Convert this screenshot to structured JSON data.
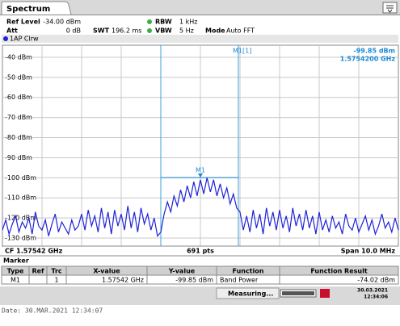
{
  "header": {
    "tab": "Spectrum",
    "settings": [
      {
        "label": "Ref Level",
        "value": "-34.00 dBm"
      },
      {
        "label": "Att",
        "value": "0 dB"
      },
      {
        "label": "SWT",
        "value": "196.2 ms"
      },
      {
        "label": "RBW",
        "value": "1 kHz"
      },
      {
        "label": "VBW",
        "value": "5 Hz"
      },
      {
        "label": "Mode",
        "value": "Auto FFT"
      }
    ]
  },
  "chart_data": {
    "type": "line",
    "series": [
      {
        "name": "1AP Clrw",
        "color": "#1f22d6",
        "values": [
          -126,
          -121,
          -128,
          -123,
          -119,
          -127,
          -122,
          -125,
          -120,
          -128,
          -117,
          -124,
          -126,
          -121,
          -129,
          -123,
          -118,
          -127,
          -122,
          -125,
          -128,
          -121,
          -126,
          -124,
          -118,
          -126,
          -116,
          -124,
          -119,
          -127,
          -115,
          -125,
          -117,
          -128,
          -116,
          -124,
          -118,
          -126,
          -114,
          -125,
          -117,
          -127,
          -115,
          -123,
          -118,
          -126,
          -120,
          -129,
          -127,
          -118,
          -112,
          -117,
          -109,
          -114,
          -106,
          -112,
          -104,
          -110,
          -102,
          -109,
          -101,
          -108,
          -100,
          -107,
          -101,
          -109,
          -103,
          -110,
          -105,
          -113,
          -108,
          -115,
          -117,
          -126,
          -119,
          -127,
          -116,
          -125,
          -118,
          -128,
          -115,
          -124,
          -117,
          -126,
          -116,
          -125,
          -119,
          -127,
          -115,
          -124,
          -118,
          -126,
          -116,
          -125,
          -119,
          -128,
          -117,
          -126,
          -121,
          -127,
          -119,
          -125,
          -122,
          -128,
          -118,
          -124,
          -126,
          -120,
          -127,
          -123,
          -119,
          -126,
          -121,
          -128,
          -124,
          -118,
          -125,
          -122,
          -127,
          -120,
          -126
        ]
      }
    ],
    "ylim": [
      -134,
      -34
    ],
    "yticks": [
      {
        "value": -40,
        "label": "-40 dBm"
      },
      {
        "value": -50,
        "label": "-50 dBm"
      },
      {
        "value": -60,
        "label": "-60 dBm"
      },
      {
        "value": -70,
        "label": "-70 dBm"
      },
      {
        "value": -80,
        "label": "-80 dBm"
      },
      {
        "value": -90,
        "label": "-90 dBm"
      },
      {
        "value": -100,
        "label": "-100 dBm"
      },
      {
        "value": -110,
        "label": "-110 dBm"
      },
      {
        "value": -120,
        "label": "-120 dBm"
      },
      {
        "value": -130,
        "label": "-130 dBm"
      }
    ],
    "grid": true,
    "marker": {
      "name": "M1",
      "readout": "M1[1]",
      "level": -99.85,
      "level_label": "-99.85 dBm",
      "freq_label": "1.5754200 GHz"
    },
    "center": "CF 1.57542 GHz",
    "points": "691 pts",
    "span": "Span 10.0 MHz"
  },
  "marker_table": {
    "title": "Marker",
    "columns": [
      "Type",
      "Ref",
      "Trc",
      "X-value",
      "Y-value",
      "Function",
      "Function Result"
    ],
    "rows": [
      [
        "M1",
        null,
        "1",
        "1.57542 GHz",
        "-99.85 dBm",
        "Band Power",
        "-74.02 dBm"
      ]
    ]
  },
  "status": {
    "state": "Measuring...",
    "date": "30.03.2021",
    "time": "12:34:06"
  },
  "footer": "Date: 30.MAR.2021  12:34:07"
}
